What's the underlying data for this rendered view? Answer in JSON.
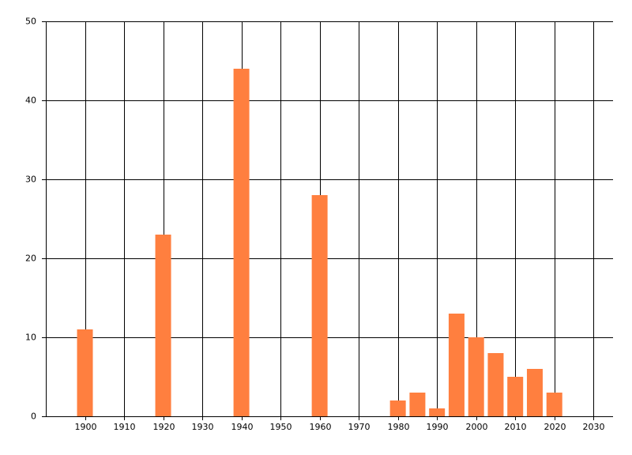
{
  "chart_data": {
    "type": "bar",
    "x": [
      1900,
      1920,
      1940,
      1960,
      1980,
      1985,
      1990,
      1995,
      2000,
      2005,
      2010,
      2015,
      2020
    ],
    "values": [
      11,
      23,
      44,
      28,
      2,
      3,
      1,
      13,
      10,
      8,
      5,
      6,
      3
    ],
    "color": "#ff7f3f",
    "xlim": [
      1890,
      2035
    ],
    "xticks": [
      1900,
      1910,
      1920,
      1930,
      1940,
      1950,
      1960,
      1970,
      1980,
      1990,
      2000,
      2010,
      2020,
      2030
    ],
    "ylim": [
      0,
      50
    ],
    "yticks": [
      0,
      10,
      20,
      30,
      40,
      50
    ],
    "grid": true
  }
}
